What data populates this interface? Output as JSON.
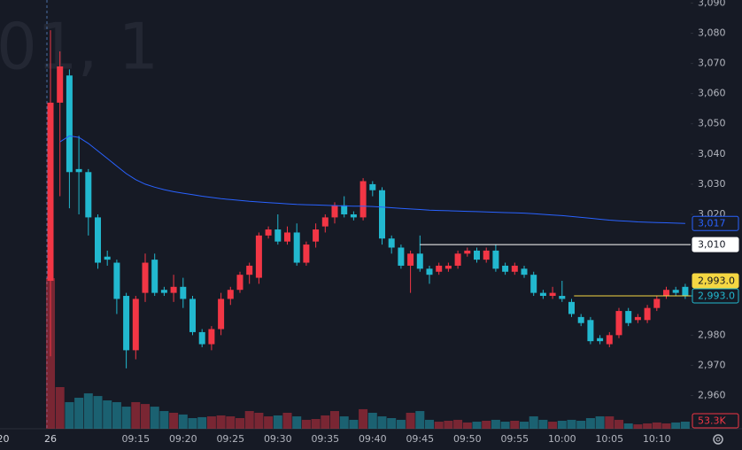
{
  "chart_data": {
    "type": "candlestick",
    "watermark": "01, 1",
    "categories": [
      "20",
      null,
      null,
      null,
      null,
      "26",
      null,
      null,
      null,
      null,
      null,
      null,
      null,
      null,
      "09:15",
      null,
      null,
      null,
      null,
      "09:20",
      null,
      null,
      null,
      null,
      "09:25",
      null,
      null,
      null,
      null,
      "09:30",
      null,
      null,
      null,
      null,
      "09:35",
      null,
      null,
      null,
      null,
      "09:40",
      null,
      null,
      null,
      null,
      "09:45",
      null,
      null,
      null,
      null,
      "09:50",
      null,
      null,
      null,
      null,
      "09:55",
      null,
      null,
      null,
      null,
      "10:00",
      null,
      null,
      null,
      null,
      "10:05",
      null,
      null,
      null,
      null,
      "10:10",
      null,
      null,
      null
    ],
    "open": [
      null,
      null,
      null,
      null,
      null,
      2998,
      3057,
      3066,
      3035,
      3034,
      3019,
      3006,
      3004,
      2993,
      2975,
      2994,
      3005,
      2995,
      2994,
      2996,
      2992,
      2981,
      2977,
      2982,
      2992,
      2995,
      3000,
      2999,
      3013,
      3015,
      3011,
      3014,
      3004,
      3011,
      3016,
      3019,
      3023,
      3020,
      3019,
      3030,
      3028,
      3012,
      3009,
      3003,
      3007,
      3002,
      3001,
      3002,
      3003,
      3007,
      3008,
      3005,
      3008,
      3003,
      3001,
      3002,
      3000,
      2994,
      2993,
      2993,
      2991,
      2986,
      2985,
      2979,
      2977,
      2980,
      2988,
      2985,
      2985,
      2989,
      2993,
      2995,
      2996
    ],
    "high": [
      null,
      null,
      null,
      null,
      null,
      3081,
      3074,
      3068,
      3046,
      3035,
      3020,
      3008,
      3005,
      2994,
      2993,
      3007,
      3007,
      2996,
      3000,
      2999,
      2993,
      2982,
      2983,
      2994,
      2996,
      3001,
      3004,
      3014,
      3016,
      3020,
      3016,
      3017,
      3011,
      3017,
      3020,
      3024,
      3026,
      3021,
      3032,
      3031,
      3029,
      3013,
      3010,
      3008,
      3013,
      3003,
      3004,
      3004,
      3008,
      3009,
      3009,
      3009,
      3010,
      3004,
      3004,
      3003,
      3001,
      2995,
      2996,
      2998,
      2992,
      2987,
      2986,
      2980,
      2981,
      2989,
      2989,
      2987,
      2990,
      2993,
      2996,
      2996,
      2997
    ],
    "low": [
      null,
      null,
      null,
      null,
      null,
      2973,
      3026,
      3022,
      3020,
      3013,
      3002,
      3003,
      2987,
      2969,
      2972,
      2991,
      2993,
      2993,
      2991,
      2989,
      2980,
      2976,
      2975,
      2980,
      2990,
      2994,
      2997,
      2997,
      3012,
      3010,
      3010,
      3003,
      3003,
      3009,
      3014,
      3017,
      3019,
      3018,
      3018,
      3026,
      3010,
      3007,
      3002,
      2994,
      3001,
      2997,
      3000,
      3001,
      3002,
      3006,
      3004,
      3004,
      3001,
      3000,
      3000,
      2999,
      2993,
      2992,
      2992,
      2991,
      2986,
      2983,
      2977,
      2977,
      2976,
      2979,
      2983,
      2984,
      2984,
      2988,
      2992,
      2993,
      2992
    ],
    "close": [
      null,
      null,
      null,
      null,
      null,
      3057,
      3069,
      3034,
      3034,
      3019,
      3004,
      3005,
      2992,
      2975,
      2992,
      3004,
      2994,
      2994,
      2996,
      2992,
      2981,
      2977,
      2982,
      2992,
      2995,
      3000,
      3003,
      3013,
      3015,
      3011,
      3014,
      3004,
      3010,
      3015,
      3019,
      3023,
      3020,
      3019,
      3031,
      3028,
      3012,
      3009,
      3003,
      3007,
      3002,
      3000,
      3003,
      3003,
      3007,
      3008,
      3005,
      3008,
      3002,
      3001,
      3003,
      3000,
      2994,
      2993,
      2994,
      2992,
      2987,
      2984,
      2978,
      2978,
      2980,
      2988,
      2984,
      2986,
      2989,
      2992,
      2995,
      2994,
      2993
    ],
    "volume": [
      null,
      null,
      null,
      null,
      null,
      1132000,
      313000,
      200000,
      233000,
      266000,
      246000,
      213000,
      200000,
      166000,
      200000,
      186000,
      166000,
      133000,
      120000,
      107000,
      80000,
      87000,
      93000,
      100000,
      93000,
      80000,
      133000,
      120000,
      93000,
      100000,
      120000,
      93000,
      67000,
      73000,
      100000,
      133000,
      93000,
      67000,
      147000,
      120000,
      93000,
      80000,
      67000,
      120000,
      133000,
      67000,
      53000,
      60000,
      67000,
      47000,
      53000,
      60000,
      67000,
      53000,
      60000,
      53000,
      93000,
      67000,
      53000,
      60000,
      67000,
      60000,
      80000,
      93000,
      93000,
      67000,
      40000,
      33000,
      40000,
      47000,
      40000,
      47000,
      53300
    ],
    "volume_label": "53.3K",
    "ma": [
      null,
      null,
      null,
      null,
      null,
      null,
      3044,
      3046,
      3045.5,
      3043.5,
      3041,
      3038.5,
      3036,
      3033.5,
      3031.5,
      3030,
      3029,
      3028.2,
      3027.5,
      3027,
      3026.5,
      3026,
      3025.6,
      3025.2,
      3024.9,
      3024.6,
      3024.3,
      3024.1,
      3023.9,
      3023.7,
      3023.5,
      3023.3,
      3023.2,
      3023.1,
      3023,
      3022.9,
      3022.8,
      3022.7,
      3022.7,
      3022.6,
      3022.4,
      3022.2,
      3022,
      3021.8,
      3021.6,
      3021.4,
      3021.3,
      3021.2,
      3021.1,
      3021,
      3020.9,
      3020.8,
      3020.7,
      3020.6,
      3020.5,
      3020.4,
      3020.2,
      3020,
      3019.8,
      3019.6,
      3019.3,
      3019,
      3018.7,
      3018.4,
      3018.1,
      3017.9,
      3017.7,
      3017.5,
      3017.4,
      3017.3,
      3017.2,
      3017.1,
      3017
    ],
    "ma_label": "3,017",
    "ma_color": "#2962ff",
    "up_color": "#f23645",
    "down_color": "#22b8cf",
    "ylim": [
      2949,
      3091
    ],
    "yticks": [
      {
        "value": 3090,
        "label": "3,090"
      },
      {
        "value": 3080,
        "label": "3,080"
      },
      {
        "value": 3070,
        "label": "3,070"
      },
      {
        "value": 3060,
        "label": "3,060"
      },
      {
        "value": 3050,
        "label": "3,050"
      },
      {
        "value": 3040,
        "label": "3,040"
      },
      {
        "value": 3030,
        "label": "3,030"
      },
      {
        "value": 3020,
        "label": "3,020"
      },
      {
        "value": 2980,
        "label": "2,980"
      },
      {
        "value": 2970,
        "label": "2,970"
      },
      {
        "value": 2960,
        "label": "2,960"
      }
    ],
    "price_lines": [
      {
        "value": 3010,
        "label": "3,010",
        "color": "#ffffff"
      },
      {
        "value": 2993,
        "label": "2,993.0",
        "color": "#f5d742"
      }
    ],
    "last_price": {
      "value": 2993,
      "label": "2,993.0"
    },
    "grid": false
  }
}
